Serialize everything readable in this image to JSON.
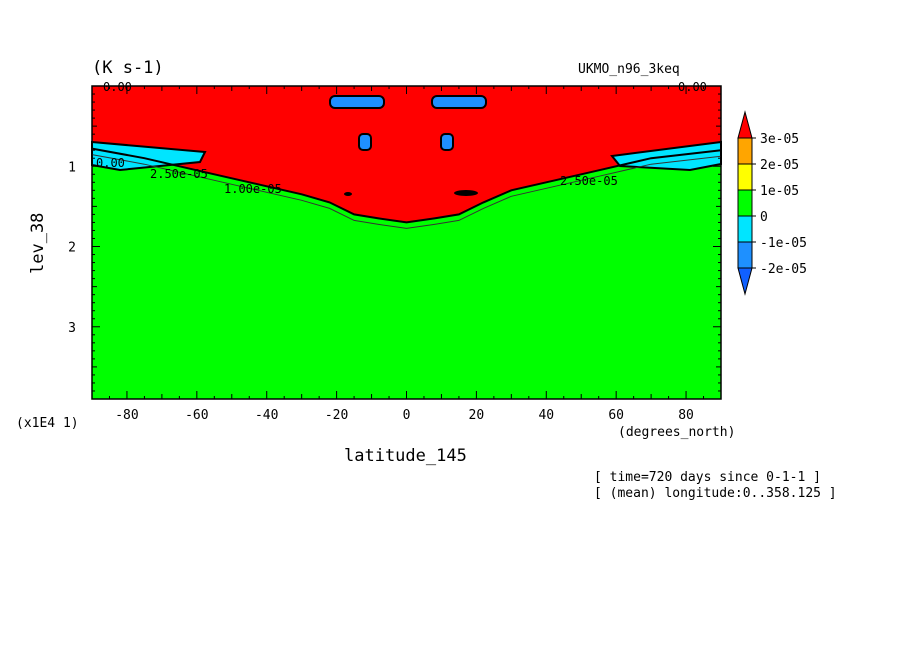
{
  "chart_data": {
    "type": "heatmap",
    "units_label": "(K s-1)",
    "dataset_label": "UKMO_n96_3keq",
    "xlabel": "latitude_145",
    "ylabel": "lev_38",
    "x_units_label": "(degrees_north)",
    "y_scale_label": "(x1E4 1)",
    "xlim": [
      -90,
      90
    ],
    "ylim": [
      3.9,
      0
    ],
    "x_ticks": [
      "-80",
      "-60",
      "-40",
      "-20",
      "0",
      "20",
      "40",
      "60",
      "80"
    ],
    "y_ticks": [
      "1",
      "2",
      "3"
    ],
    "legend": {
      "placement": "right",
      "levels": [
        "3e-05",
        "2e-05",
        "1e-05",
        "0",
        "-1e-05",
        "-2e-05"
      ],
      "colors": [
        "#ff0000",
        "#ffa500",
        "#ffff00",
        "#00ff00",
        "#00e5ff",
        "#1e90ff",
        "#1060ff"
      ]
    },
    "regions": {
      "upper_value": "3e-05",
      "lower_value": "0",
      "boundary_lev_by_lat": [
        [
          -90,
          0.78
        ],
        [
          -75,
          0.9
        ],
        [
          -60,
          1.05
        ],
        [
          -45,
          1.2
        ],
        [
          -30,
          1.35
        ],
        [
          -22,
          1.45
        ],
        [
          -15,
          1.6
        ],
        [
          -8,
          1.65
        ],
        [
          0,
          1.7
        ],
        [
          8,
          1.65
        ],
        [
          15,
          1.6
        ],
        [
          22,
          1.45
        ],
        [
          30,
          1.3
        ],
        [
          40,
          1.2
        ],
        [
          55,
          1.05
        ],
        [
          70,
          0.9
        ],
        [
          90,
          0.8
        ]
      ]
    },
    "contour_labels": [
      "0.00",
      "0.00",
      "0.00",
      "1.00e-05",
      "2.50e-05",
      "2.50e-05"
    ],
    "footer": [
      "[ time=720 days since 0-1-1 ]",
      "[ (mean) longitude:0..358.125 ]"
    ]
  }
}
